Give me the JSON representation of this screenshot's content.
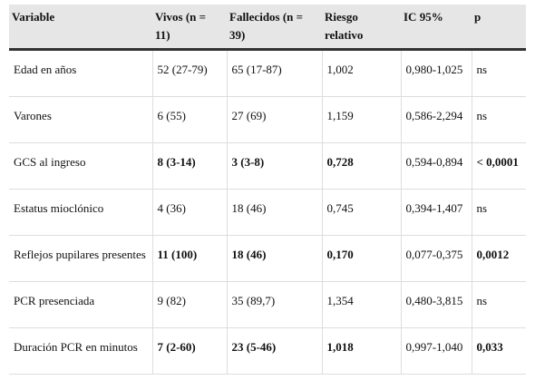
{
  "table": {
    "header": [
      "Variable",
      "Vivos (n = 11)",
      "Fallecidos (n = 39)",
      "Riesgo relativo",
      "IC 95%",
      "p"
    ],
    "rows": [
      [
        "Edad en años",
        "52 (27-79)",
        "65 (17-87)",
        "1,002",
        "0,980-1,025",
        "ns"
      ],
      [
        "Varones",
        "6 (55)",
        "27 (69)",
        "1,159",
        "0,586-2,294",
        "ns"
      ],
      [
        "GCS al ingreso",
        "8 (3-14)",
        "3 (3-8)",
        "0,728",
        "0,594-0,894",
        "< 0,0001"
      ],
      [
        "Estatus mioclónico",
        "4 (36)",
        "18 (46)",
        "0,745",
        "0,394-1,407",
        "ns"
      ],
      [
        "Reflejos pupilares presentes",
        "11 (100)",
        "18 (46)",
        "0,170",
        "0,077-0,375",
        "0,0012"
      ],
      [
        "PCR presenciada",
        "9 (82)",
        "35 (89,7)",
        "1,354",
        "0,480-3,815",
        "ns"
      ],
      [
        "Duración PCR en minutos",
        "7 (2-60)",
        "23 (5-46)",
        "1,018",
        "0,997-1,040",
        "0,033"
      ]
    ]
  }
}
